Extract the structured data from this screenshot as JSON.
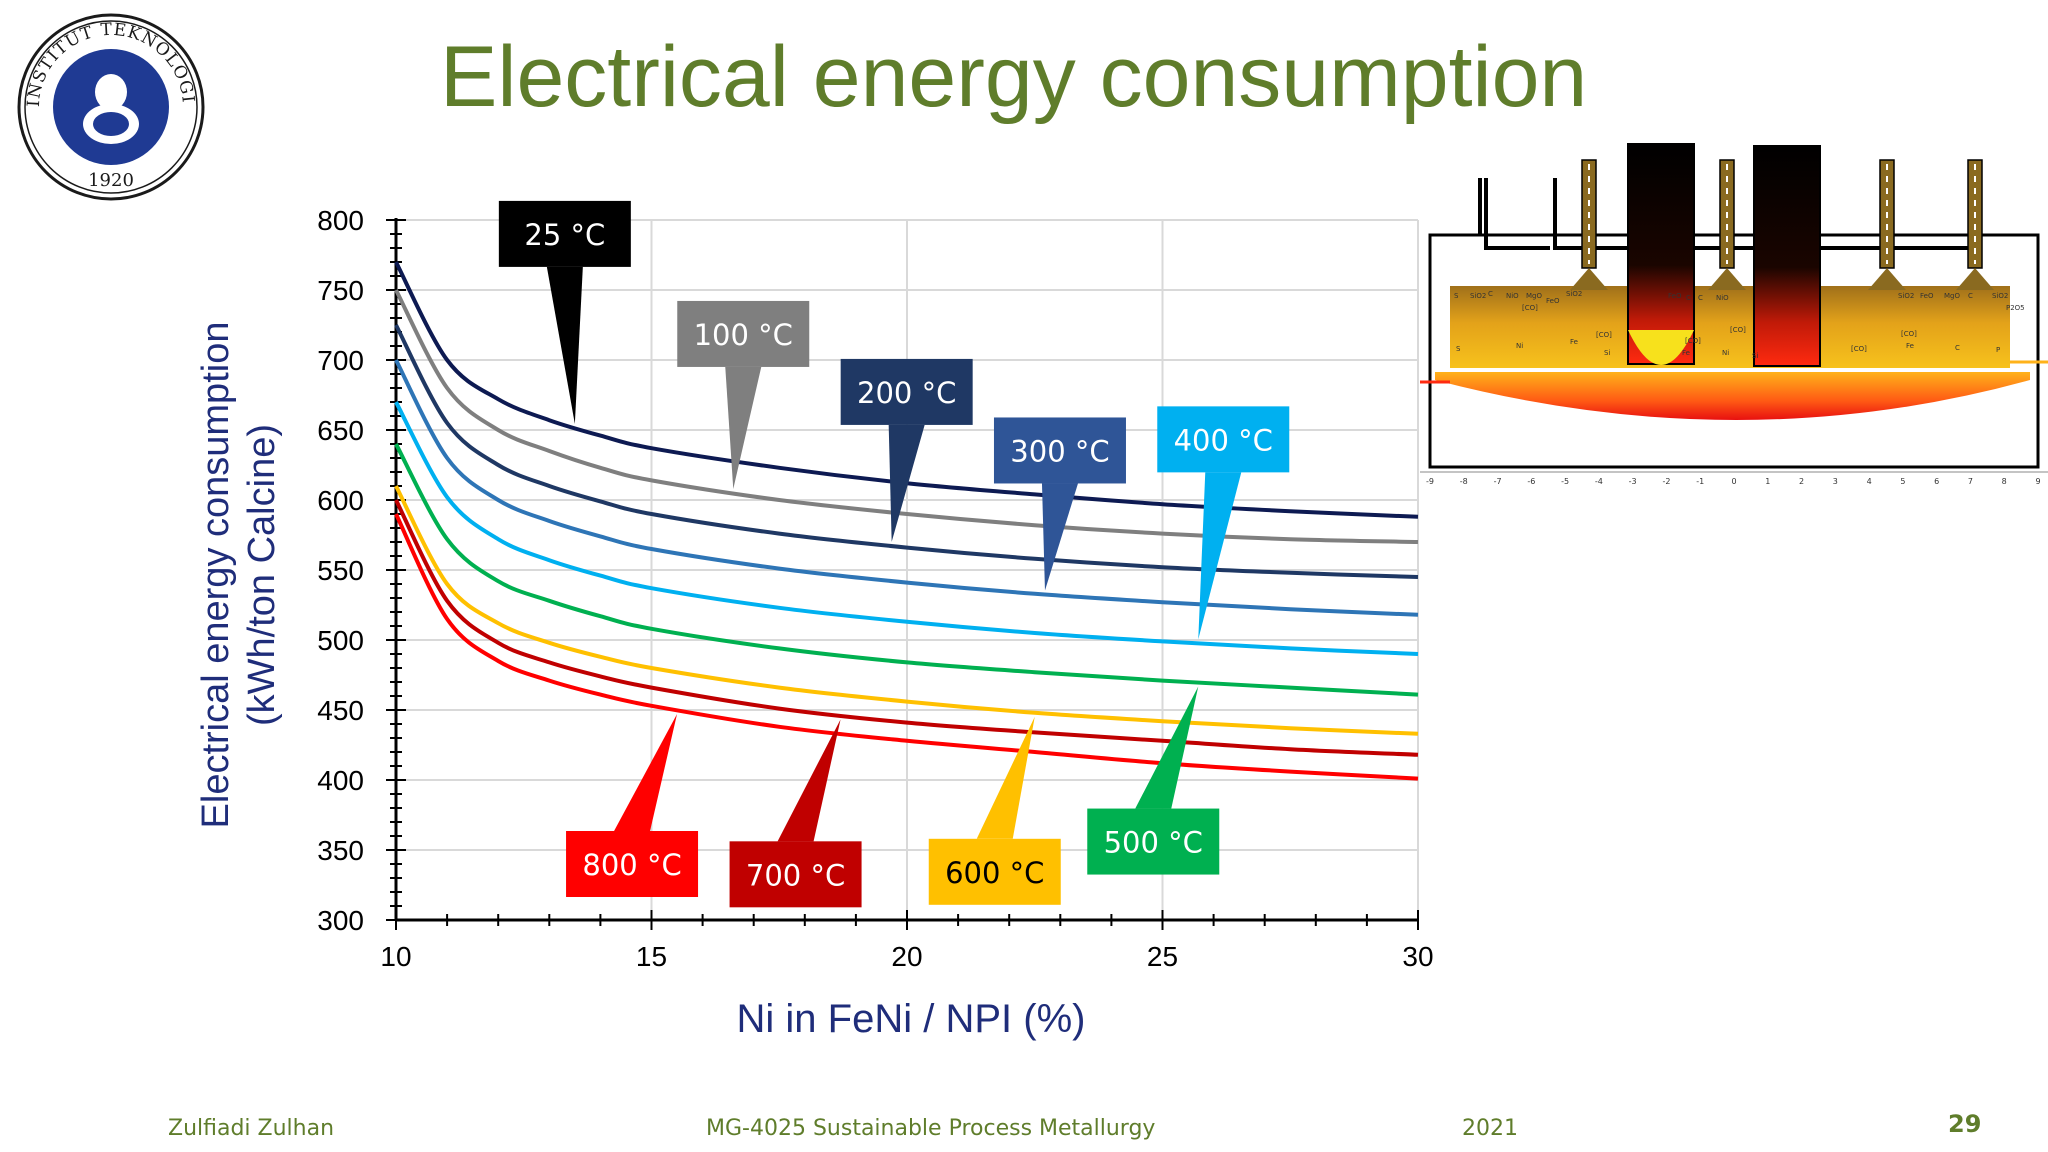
{
  "slide": {
    "title": "Electrical energy consumption",
    "logo": {
      "ring_text_top": "INSTITUT TEKNOLOGI BANDUNG",
      "year": "1920",
      "color": "#1f3a93"
    },
    "footer": {
      "author": "Zulfiadi Zulhan",
      "course": "MG-4025 Sustainable Process Metallurgy",
      "year": "2021",
      "page": "29"
    },
    "title_color": "#5f7d2b"
  },
  "chart_data": {
    "type": "line",
    "title": "",
    "xlabel": "Ni in FeNi / NPI (%)",
    "ylabel_line1": "Electrical energy consumption",
    "ylabel_line2": "(kWh/ton Calcine)",
    "xlim": [
      10,
      30
    ],
    "ylim": [
      300,
      800
    ],
    "xticks": [
      "10",
      "15",
      "20",
      "25",
      "30"
    ],
    "yticks": [
      "300",
      "350",
      "400",
      "450",
      "500",
      "550",
      "600",
      "650",
      "700",
      "750",
      "800"
    ],
    "grid": true,
    "x": [
      10,
      11,
      12,
      13,
      14,
      15,
      17.5,
      20,
      22.5,
      25,
      27.5,
      30
    ],
    "series": [
      {
        "name": "25 °C",
        "color": "#0d1a52",
        "values": [
          770,
          700,
          672,
          657,
          646,
          637,
          623,
          612,
          604,
          597,
          592,
          588
        ]
      },
      {
        "name": "100 °C",
        "color": "#7f7f7f",
        "values": [
          750,
          680,
          650,
          635,
          623,
          614,
          600,
          590,
          582,
          576,
          572,
          570
        ]
      },
      {
        "name": "200 °C",
        "color": "#1f3864",
        "values": [
          725,
          655,
          625,
          610,
          599,
          590,
          576,
          566,
          558,
          552,
          548,
          545
        ]
      },
      {
        "name": "300 °C",
        "color": "#2e75b6",
        "values": [
          700,
          630,
          600,
          585,
          574,
          565,
          551,
          541,
          533,
          527,
          522,
          518
        ]
      },
      {
        "name": "400 °C",
        "color": "#00b0f0",
        "values": [
          670,
          602,
          572,
          557,
          546,
          537,
          523,
          513,
          505,
          499,
          494,
          490
        ]
      },
      {
        "name": "500 °C",
        "color": "#00b050",
        "values": [
          640,
          572,
          542,
          528,
          517,
          508,
          494,
          484,
          477,
          471,
          466,
          461
        ]
      },
      {
        "name": "600 °C",
        "color": "#ffc000",
        "values": [
          610,
          540,
          512,
          498,
          488,
          480,
          466,
          456,
          448,
          442,
          437,
          433
        ]
      },
      {
        "name": "700 °C",
        "color": "#c00000",
        "values": [
          600,
          528,
          498,
          484,
          474,
          466,
          451,
          441,
          434,
          428,
          422,
          418
        ]
      },
      {
        "name": "800 °C",
        "color": "#ff0000",
        "values": [
          590,
          515,
          485,
          471,
          461,
          453,
          438,
          428,
          420,
          412,
          406,
          401
        ]
      }
    ],
    "annotations": [
      {
        "text": "25 °C",
        "series": 0,
        "at_x": 13.5,
        "bg": "#000000",
        "fg": "#ffffff"
      },
      {
        "text": "100 °C",
        "series": 1,
        "at_x": 16.6,
        "bg": "#7f7f7f",
        "fg": "#ffffff"
      },
      {
        "text": "200 °C",
        "series": 2,
        "at_x": 19.7,
        "bg": "#1f3864",
        "fg": "#ffffff"
      },
      {
        "text": "300 °C",
        "series": 3,
        "at_x": 22.7,
        "bg": "#2f5597",
        "fg": "#ffffff"
      },
      {
        "text": "400 °C",
        "series": 4,
        "at_x": 25.7,
        "bg": "#00b0f0",
        "fg": "#ffffff"
      },
      {
        "text": "500 °C",
        "series": 5,
        "at_x": 25.7,
        "bg": "#00b050",
        "fg": "#ffffff"
      },
      {
        "text": "600 °C",
        "series": 6,
        "at_x": 22.5,
        "bg": "#ffc000",
        "fg": "#000000"
      },
      {
        "text": "700 °C",
        "series": 7,
        "at_x": 18.7,
        "bg": "#c00000",
        "fg": "#ffffff"
      },
      {
        "text": "800 °C",
        "series": 8,
        "at_x": 15.5,
        "bg": "#ff0000",
        "fg": "#ffffff"
      }
    ]
  },
  "furnace_diagram": {
    "axis_labels": [
      "-9",
      "-8",
      "-7",
      "-6",
      "-5",
      "-4",
      "-3",
      "-2",
      "-1",
      "0",
      "1",
      "2",
      "3",
      "4",
      "5",
      "6",
      "7",
      "8",
      "9"
    ],
    "species": [
      "S",
      "SiO2",
      "C",
      "NiO",
      "MgO",
      "FeO",
      "SiO2",
      "FeO",
      "C",
      "C",
      "NiO",
      "SiO2",
      "FeO",
      "MgO",
      "C",
      "SiO2",
      "P2O5",
      "S",
      "Ni",
      "Fe",
      "Si",
      "Fe",
      "Ni",
      "Si",
      "Fe",
      "C",
      "P",
      "[CO]",
      "[CO]",
      "[CO]",
      "[CO]",
      "[CO]",
      "[CO]"
    ]
  }
}
